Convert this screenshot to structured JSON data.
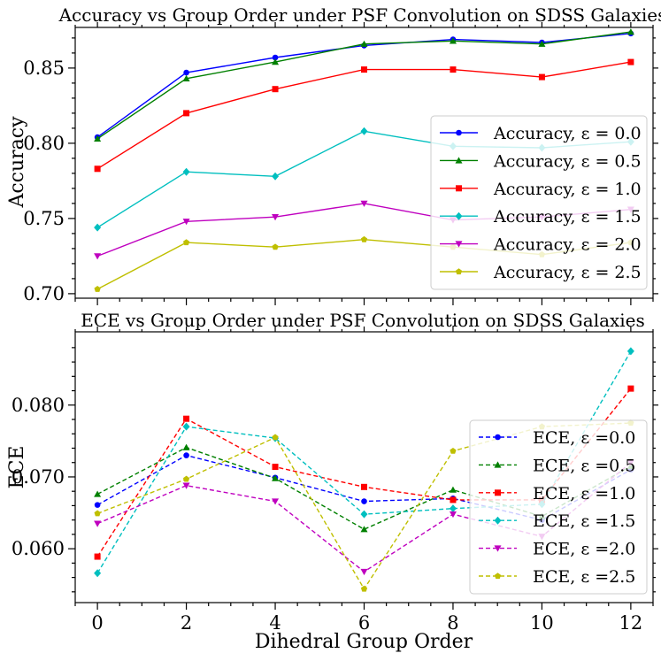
{
  "chart_data": [
    {
      "type": "line",
      "title": "Accuracy vs Group Order under PSF Convolution on SDSS Galaxies",
      "xlabel": "",
      "ylabel": "Accuracy",
      "xlim": [
        -0.5,
        12.5
      ],
      "ylim": [
        0.697,
        0.877
      ],
      "xticks": [
        0,
        2,
        4,
        6,
        8,
        10,
        12
      ],
      "yticks": [
        0.7,
        0.75,
        0.8,
        0.85
      ],
      "ytick_labels": [
        "0.70",
        "0.75",
        "0.80",
        "0.85"
      ],
      "show_xtick_labels": false,
      "legend_position": "center-right",
      "line_style": "solid",
      "x": [
        0,
        2,
        4,
        6,
        8,
        10,
        12
      ],
      "series": [
        {
          "name": "Accuracy, ε = 0.0",
          "color": "#0000ff",
          "marker": "circle",
          "values": [
            0.804,
            0.847,
            0.857,
            0.865,
            0.869,
            0.867,
            0.873
          ]
        },
        {
          "name": "Accuracy, ε = 0.5",
          "color": "#008000",
          "marker": "triangle-up",
          "values": [
            0.803,
            0.843,
            0.854,
            0.866,
            0.868,
            0.866,
            0.874
          ]
        },
        {
          "name": "Accuracy, ε = 1.0",
          "color": "#ff0000",
          "marker": "square",
          "values": [
            0.783,
            0.82,
            0.836,
            0.849,
            0.849,
            0.844,
            0.854
          ]
        },
        {
          "name": "Accuracy, ε = 1.5",
          "color": "#00bfbf",
          "marker": "diamond",
          "values": [
            0.744,
            0.781,
            0.778,
            0.808,
            0.798,
            0.797,
            0.801
          ]
        },
        {
          "name": "Accuracy, ε = 2.0",
          "color": "#bf00bf",
          "marker": "triangle-down",
          "values": [
            0.725,
            0.748,
            0.751,
            0.76,
            0.749,
            0.751,
            0.756
          ]
        },
        {
          "name": "Accuracy, ε = 2.5",
          "color": "#bfbf00",
          "marker": "pentagon",
          "values": [
            0.703,
            0.734,
            0.731,
            0.736,
            0.731,
            0.726,
            0.734
          ]
        }
      ]
    },
    {
      "type": "line",
      "title": "ECE vs Group Order under PSF Convolution on SDSS Galaxies",
      "xlabel": "Dihedral Group Order",
      "ylabel": "ECE",
      "xlim": [
        -0.5,
        12.5
      ],
      "ylim": [
        0.0525,
        0.0902
      ],
      "xticks": [
        0,
        2,
        4,
        6,
        8,
        10,
        12
      ],
      "xtick_labels": [
        "0",
        "2",
        "4",
        "6",
        "8",
        "10",
        "12"
      ],
      "yticks": [
        0.06,
        0.07,
        0.08
      ],
      "ytick_labels": [
        "0.060",
        "0.070",
        "0.080"
      ],
      "show_xtick_labels": true,
      "legend_position": "center-right",
      "line_style": "dashed",
      "x": [
        0,
        2,
        4,
        6,
        8,
        10,
        12
      ],
      "series": [
        {
          "name": "ECE, ε =0.0",
          "color": "#0000ff",
          "marker": "circle",
          "values": [
            0.0661,
            0.073,
            0.0699,
            0.0666,
            0.067,
            0.064,
            0.071
          ]
        },
        {
          "name": "ECE, ε =0.5",
          "color": "#008000",
          "marker": "triangle-up",
          "values": [
            0.0676,
            0.0741,
            0.0698,
            0.0627,
            0.0682,
            0.0645,
            0.0715
          ]
        },
        {
          "name": "ECE, ε =1.0",
          "color": "#ff0000",
          "marker": "square",
          "values": [
            0.0589,
            0.0781,
            0.0714,
            0.0686,
            0.0668,
            0.0668,
            0.0823
          ]
        },
        {
          "name": "ECE, ε =1.5",
          "color": "#00bfbf",
          "marker": "diamond",
          "values": [
            0.0566,
            0.077,
            0.0754,
            0.0648,
            0.0656,
            0.0662,
            0.0875
          ]
        },
        {
          "name": "ECE, ε =2.0",
          "color": "#bf00bf",
          "marker": "triangle-down",
          "values": [
            0.0635,
            0.0688,
            0.0666,
            0.0568,
            0.0648,
            0.0617,
            0.072
          ]
        },
        {
          "name": "ECE, ε =2.5",
          "color": "#bfbf00",
          "marker": "pentagon",
          "values": [
            0.0649,
            0.0697,
            0.0755,
            0.0544,
            0.0736,
            0.077,
            0.0775
          ]
        }
      ]
    }
  ]
}
